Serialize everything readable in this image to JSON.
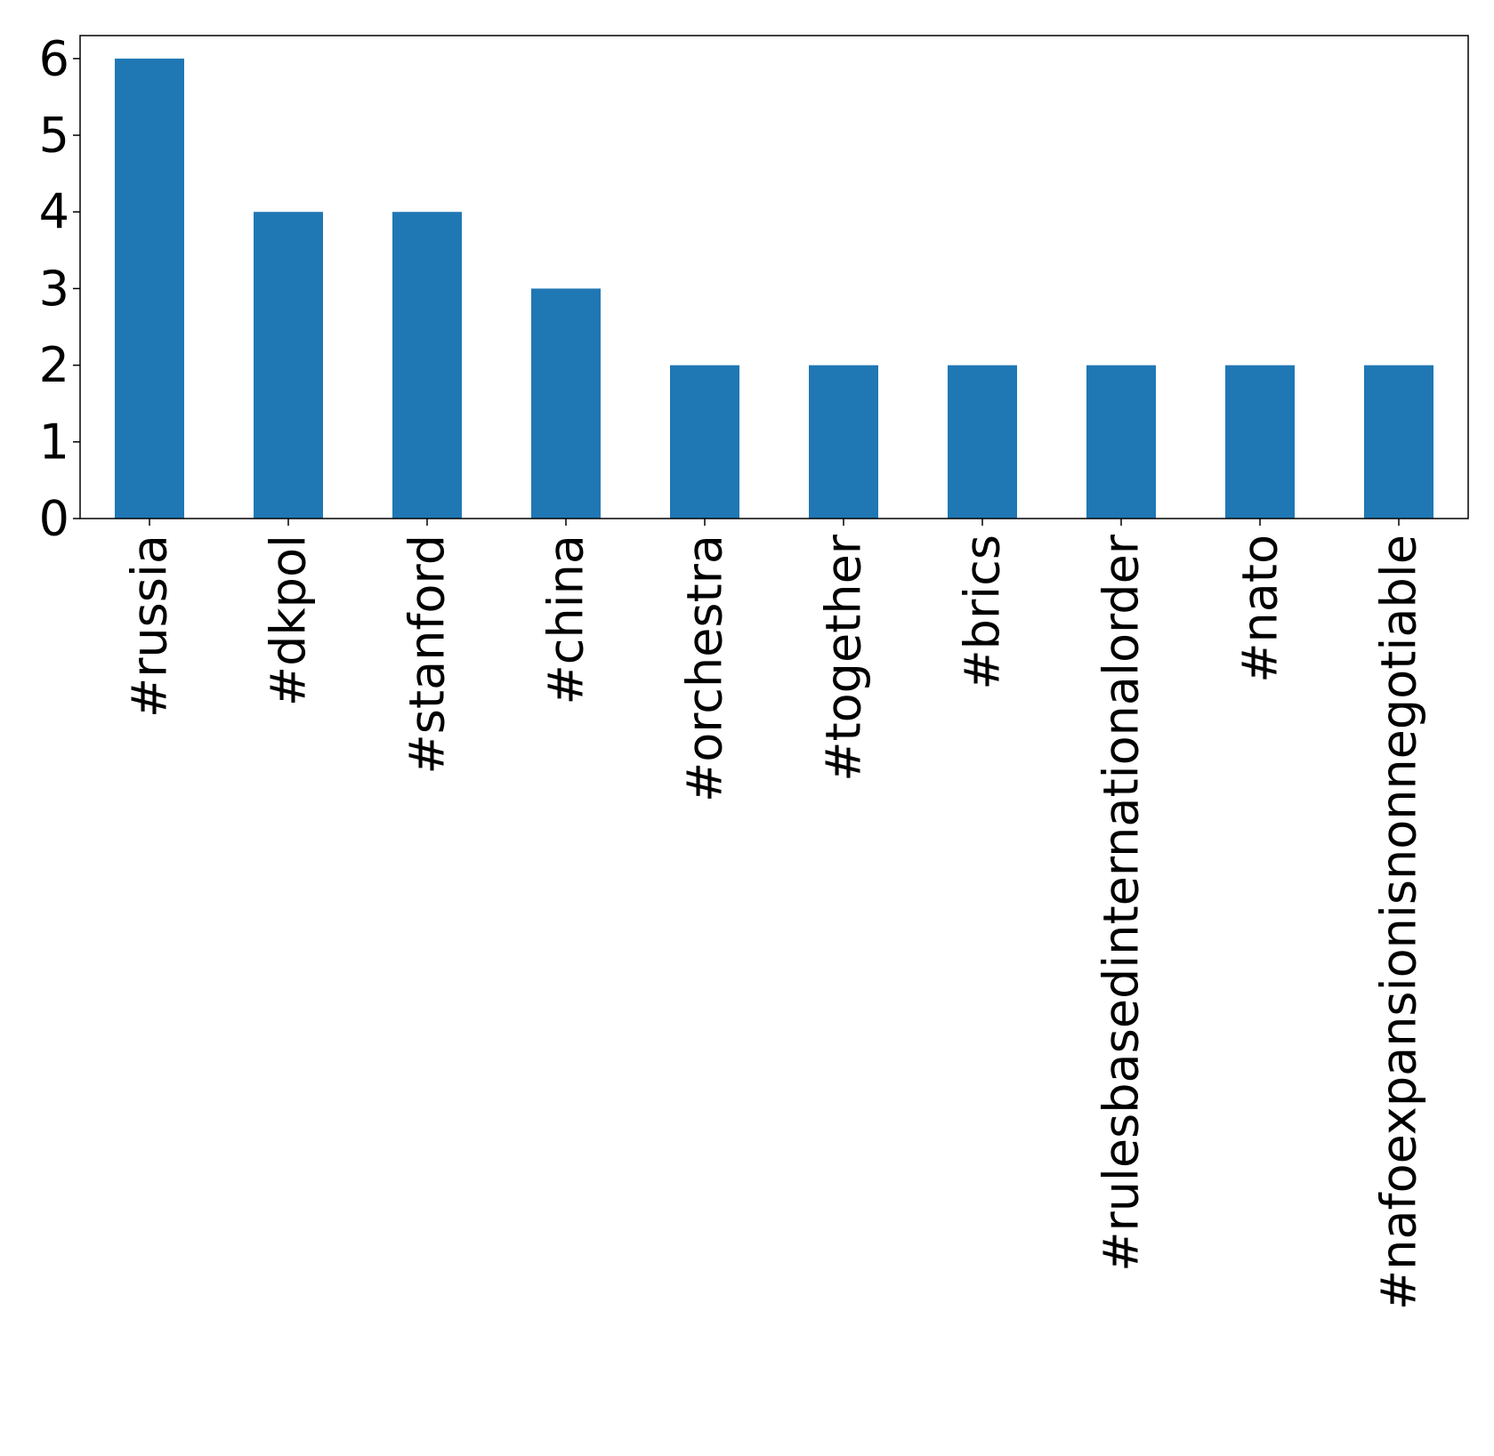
{
  "chart_data": {
    "type": "bar",
    "title": "",
    "xlabel": "",
    "ylabel": "",
    "categories": [
      "#russia",
      "#dkpol",
      "#stanford",
      "#china",
      "#orchestra",
      "#together",
      "#brics",
      "#rulesbasedinternationalorder",
      "#nato",
      "#nafoexpansionisnonnegotiable"
    ],
    "values": [
      6,
      4,
      4,
      3,
      2,
      2,
      2,
      2,
      2,
      2
    ],
    "ylim": [
      0,
      6.3
    ],
    "yticks": [
      0,
      1,
      2,
      3,
      4,
      5,
      6
    ],
    "grid": false,
    "legend": "none",
    "bar_color": "#1f77b4",
    "axis_color": "#000000"
  }
}
